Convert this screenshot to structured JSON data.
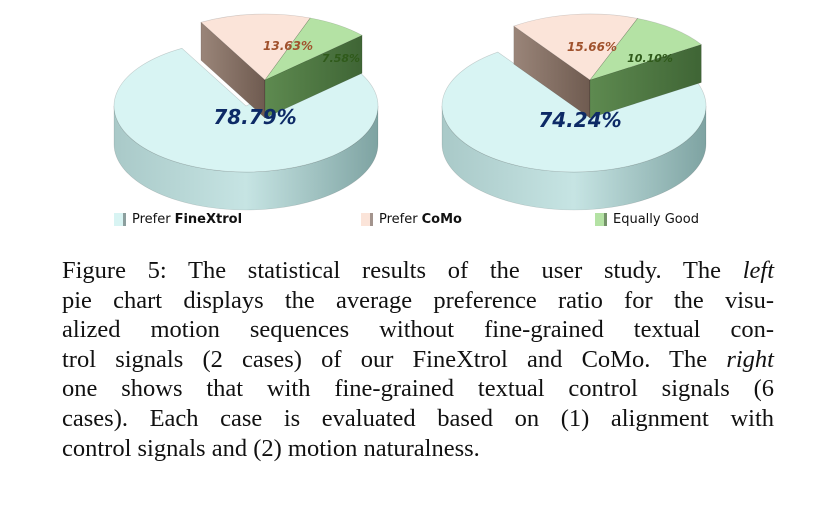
{
  "chart_data": [
    {
      "type": "pie",
      "position": "left",
      "slices": [
        {
          "label": "Prefer FineXtrol",
          "value": 78.79,
          "text": "78.79%"
        },
        {
          "label": "Prefer CoMo",
          "value": 13.63,
          "text": "13.63%"
        },
        {
          "label": "Equally Good",
          "value": 7.58,
          "text": "7.58%"
        }
      ]
    },
    {
      "type": "pie",
      "position": "right",
      "slices": [
        {
          "label": "Prefer FineXtrol",
          "value": 74.24,
          "text": "74.24%"
        },
        {
          "label": "Prefer CoMo",
          "value": 15.66,
          "text": "15.66%"
        },
        {
          "label": "Equally Good",
          "value": 10.1,
          "text": "10.10%"
        }
      ]
    }
  ],
  "colors": {
    "finextrol": "#d8f4f3",
    "como": "#fbe4d9",
    "equal": "#b4e2a4"
  },
  "legend": [
    {
      "prefix": "Prefer",
      "bold": "FineXtrol"
    },
    {
      "prefix": "Prefer",
      "bold": "CoMo"
    },
    {
      "prefix": "Equally Good",
      "bold": ""
    }
  ],
  "caption": {
    "line1_a": "Figure 5: The statistical results of the user study. The ",
    "line1_em": "left",
    "line2": "pie chart displays the average preference ratio for the visu-",
    "line3": "alized motion sequences without fine-grained textual con-",
    "line4_a": "trol signals (2 cases) of our FineXtrol and CoMo. The ",
    "line4_em": "right",
    "line5": "one shows that with fine-grained textual control signals (6",
    "line6": "cases). Each case is evaluated based on (1) alignment with",
    "line7": "control signals and (2) motion naturalness."
  }
}
